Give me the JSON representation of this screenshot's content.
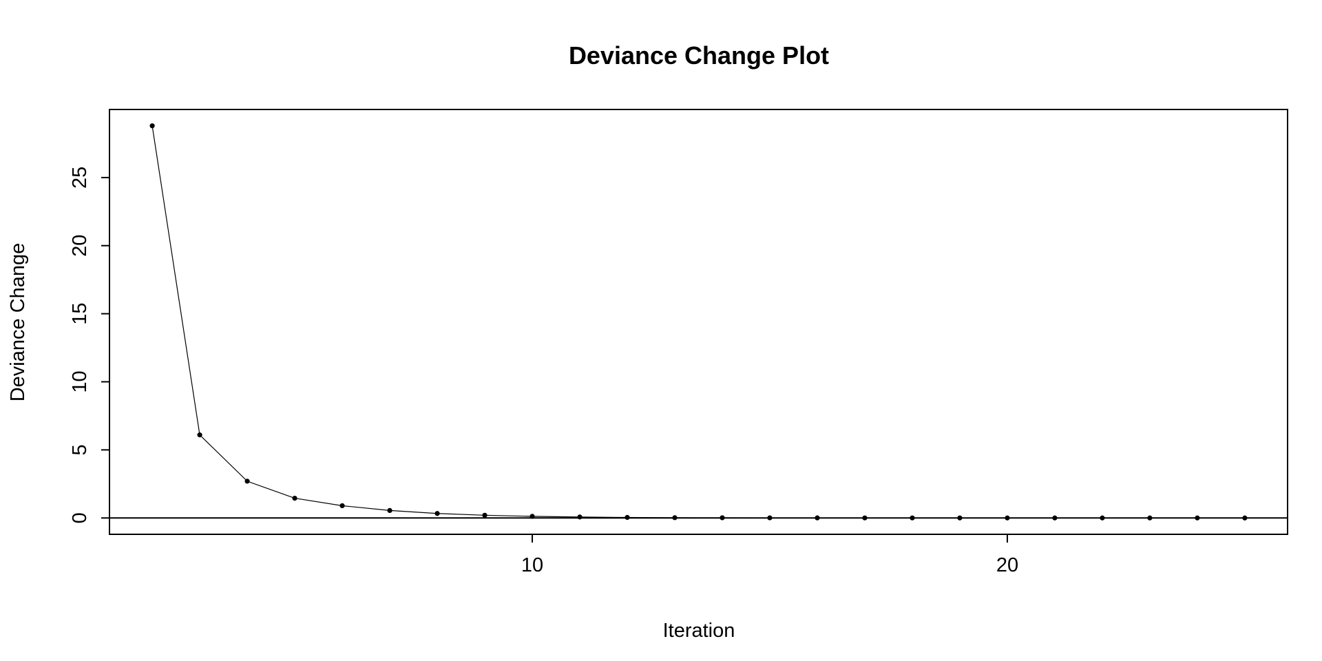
{
  "chart_data": {
    "type": "line",
    "title": "Deviance Change Plot",
    "xlabel": "Iteration",
    "ylabel": "Deviance Change",
    "xlim": [
      1.1,
      25.9
    ],
    "ylim": [
      -1.2,
      30
    ],
    "xticks": [
      10,
      20
    ],
    "yticks": [
      0,
      5,
      10,
      15,
      20,
      25
    ],
    "reference_line_y": 0,
    "grid": false,
    "legend": "none",
    "line_color": "#000000",
    "marker": "filled-circle",
    "series": [
      {
        "x": [
          2,
          3,
          4,
          5,
          6,
          7,
          8,
          9,
          10,
          11,
          12,
          13,
          14,
          15,
          16,
          17,
          18,
          19,
          20,
          21,
          22,
          23,
          24,
          25
        ],
        "y": [
          28.8,
          6.1,
          2.7,
          1.45,
          0.9,
          0.55,
          0.33,
          0.2,
          0.12,
          0.07,
          0.04,
          0.02,
          0.015,
          0.01,
          0.006,
          0.004,
          0.003,
          0.002,
          0.001,
          0.001,
          0.0005,
          0.0003,
          0.0002,
          0.0001
        ]
      }
    ]
  }
}
